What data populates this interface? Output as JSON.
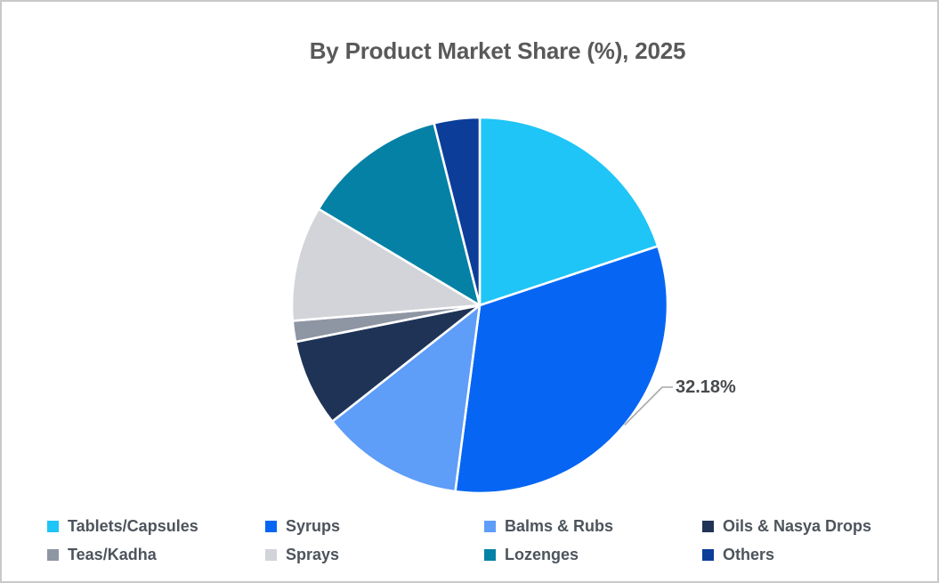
{
  "window": {
    "background_color": "#FFFFFF",
    "border_color": "#C9C9C9"
  },
  "chart_data": {
    "type": "pie",
    "title": "By Product Market Share (%), 2025",
    "categories": [
      "Tablets/Capsules",
      "Syrups",
      "Balms & Rubs",
      "Oils & Nasya Drops",
      "Teas/Kadha",
      "Sprays",
      "Lozenges",
      "Others"
    ],
    "values": [
      19.9,
      32.18,
      12.3,
      7.5,
      1.8,
      9.9,
      12.5,
      3.92
    ],
    "colors": [
      "#1EC5F6",
      "#0666F3",
      "#5E9DF8",
      "#1F3357",
      "#8E95A3",
      "#D2D4D9",
      "#0581A6",
      "#0B3D99"
    ],
    "start_angle_deg": 0,
    "direction": "clockwise",
    "slice_separator_color": "#FFFFFF",
    "legend_position": "bottom",
    "legend_columns": 4,
    "data_label": {
      "text": "32.18%",
      "category": "Syrups",
      "value": 32.18
    },
    "leader_line_color": "#A8A8A8",
    "title_color": "#595959",
    "data_label_color": "#474A4D",
    "legend_text_color": "#4D545C"
  }
}
